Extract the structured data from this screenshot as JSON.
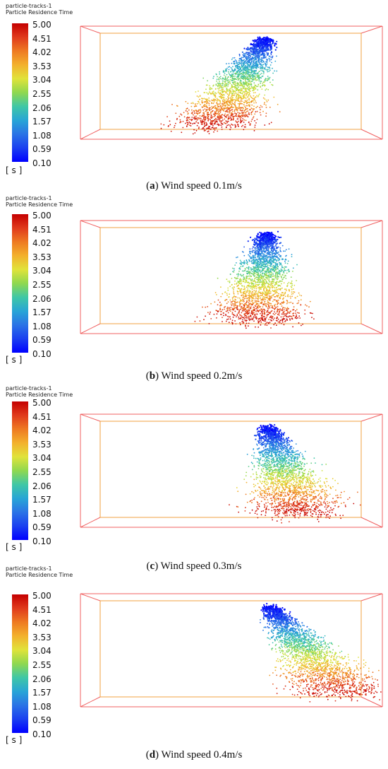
{
  "colorbar": {
    "header_line1": "particle-tracks-1",
    "header_line2": "Particle Residence Time",
    "unit": "[ s ]",
    "ticks": [
      "5.00",
      "4.51",
      "4.02",
      "3.53",
      "3.04",
      "2.55",
      "2.06",
      "1.57",
      "1.08",
      "0.59",
      "0.10"
    ]
  },
  "panels": [
    {
      "label": "a",
      "caption": " Wind speed 0.1m/s",
      "wind_speed": 0.1
    },
    {
      "label": "b",
      "caption": " Wind speed 0.2m/s",
      "wind_speed": 0.2
    },
    {
      "label": "c",
      "caption": " Wind speed 0.3m/s",
      "wind_speed": 0.3
    },
    {
      "label": "d",
      "caption": " Wind speed 0.4m/s",
      "wind_speed": 0.4
    }
  ],
  "colors": {
    "frame_outer": "#f06060",
    "frame_inner": "#f0a040",
    "high": "#c40000",
    "low": "#0000ff"
  }
}
